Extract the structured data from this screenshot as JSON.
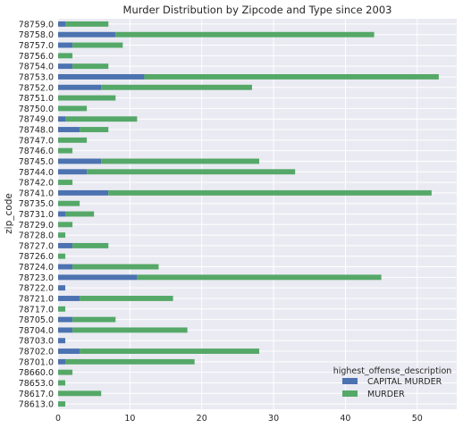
{
  "chart_data": {
    "type": "bar",
    "orientation": "horizontal",
    "stacked": true,
    "title": "Murder Distribution by Zipcode and Type since 2003",
    "xlabel": "",
    "ylabel": "zip_code",
    "xlim": [
      0,
      55.5
    ],
    "xticks": [
      0,
      10,
      20,
      30,
      40,
      50
    ],
    "grid": true,
    "legend_title": "highest_offense_description",
    "legend_position": "lower-right",
    "categories": [
      "78613.0",
      "78617.0",
      "78653.0",
      "78660.0",
      "78701.0",
      "78702.0",
      "78703.0",
      "78704.0",
      "78705.0",
      "78717.0",
      "78721.0",
      "78722.0",
      "78723.0",
      "78724.0",
      "78726.0",
      "78727.0",
      "78728.0",
      "78729.0",
      "78731.0",
      "78735.0",
      "78741.0",
      "78742.0",
      "78744.0",
      "78745.0",
      "78746.0",
      "78747.0",
      "78748.0",
      "78749.0",
      "78750.0",
      "78751.0",
      "78752.0",
      "78753.0",
      "78754.0",
      "78756.0",
      "78757.0",
      "78758.0",
      "78759.0"
    ],
    "series": [
      {
        "name": "CAPITAL MURDER",
        "color": "#4c72b0",
        "values": [
          0,
          0,
          0,
          0,
          1,
          3,
          1,
          2,
          2,
          0,
          3,
          1,
          11,
          2,
          0,
          2,
          0,
          0,
          1,
          0,
          7,
          0,
          4,
          6,
          0,
          0,
          3,
          1,
          0,
          0,
          6,
          12,
          2,
          0,
          2,
          8,
          1
        ]
      },
      {
        "name": "MURDER",
        "color": "#55a868",
        "values": [
          1,
          6,
          1,
          2,
          18,
          25,
          0,
          16,
          6,
          1,
          13,
          0,
          34,
          12,
          1,
          5,
          1,
          2,
          4,
          3,
          45,
          2,
          29,
          22,
          2,
          4,
          4,
          10,
          4,
          8,
          21,
          41,
          5,
          2,
          7,
          36,
          6
        ]
      }
    ]
  },
  "style": {
    "plot_background": "#eaeaf2",
    "grid_color": "#ffffff",
    "text_color": "#262626"
  }
}
